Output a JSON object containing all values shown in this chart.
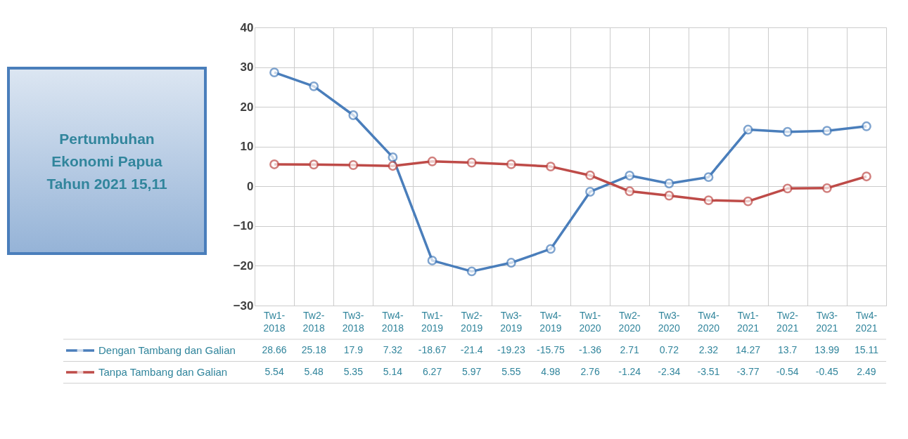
{
  "chart_data": {
    "type": "line",
    "categories": [
      "Tw1-2018",
      "Tw2-2018",
      "Tw3-2018",
      "Tw4-2018",
      "Tw1-2019",
      "Tw2-2019",
      "Tw3-2019",
      "Tw4-2019",
      "Tw1-2020",
      "Tw2-2020",
      "Tw3-2020",
      "Tw4-2020",
      "Tw1-2021",
      "Tw2-2021",
      "Tw3-2021",
      "Tw4-2021"
    ],
    "series": [
      {
        "name": "Dengan Tambang dan Galian",
        "color": "#4a7ebb",
        "values": [
          28.66,
          25.18,
          17.9,
          7.32,
          -18.67,
          -21.4,
          -19.23,
          -15.75,
          -1.36,
          2.71,
          0.72,
          2.32,
          14.27,
          13.7,
          13.99,
          15.11
        ]
      },
      {
        "name": "Tanpa Tambang dan Galian",
        "color": "#be4b48",
        "values": [
          5.54,
          5.48,
          5.35,
          5.14,
          6.27,
          5.97,
          5.55,
          4.98,
          2.76,
          -1.24,
          -2.34,
          -3.51,
          -3.77,
          -0.54,
          -0.45,
          2.49
        ]
      }
    ],
    "ylim": [
      -30,
      40
    ],
    "yticks": [
      -30,
      -20,
      -10,
      0,
      10,
      20,
      30,
      40
    ],
    "grid": true,
    "legend": "bottom",
    "marker": "circle",
    "line_style": "solid",
    "data_labels": true,
    "annotations": [
      "Pertumbuhan Ekonomi Papua Tahun 2021 15,11"
    ]
  }
}
